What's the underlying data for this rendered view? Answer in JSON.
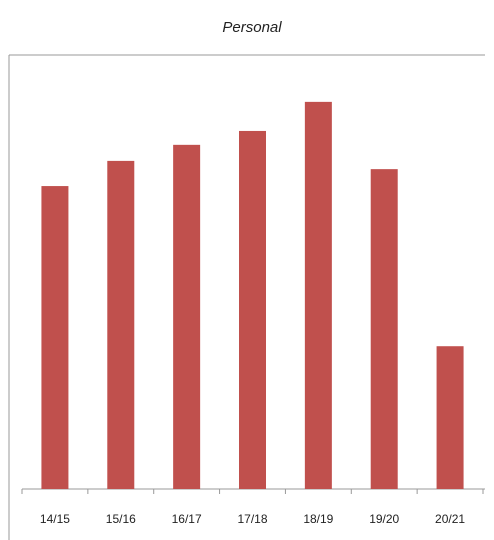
{
  "chart_data": {
    "type": "bar",
    "title": "Personal",
    "categories": [
      "14/15",
      "15/16",
      "16/17",
      "17/18",
      "18/19",
      "19/20",
      "20/21"
    ],
    "values": [
      69.8,
      75.6,
      79.3,
      82.5,
      89.2,
      73.7,
      32.9
    ],
    "color": "#c0504d",
    "ylim": [
      0,
      100
    ],
    "grid": false
  }
}
